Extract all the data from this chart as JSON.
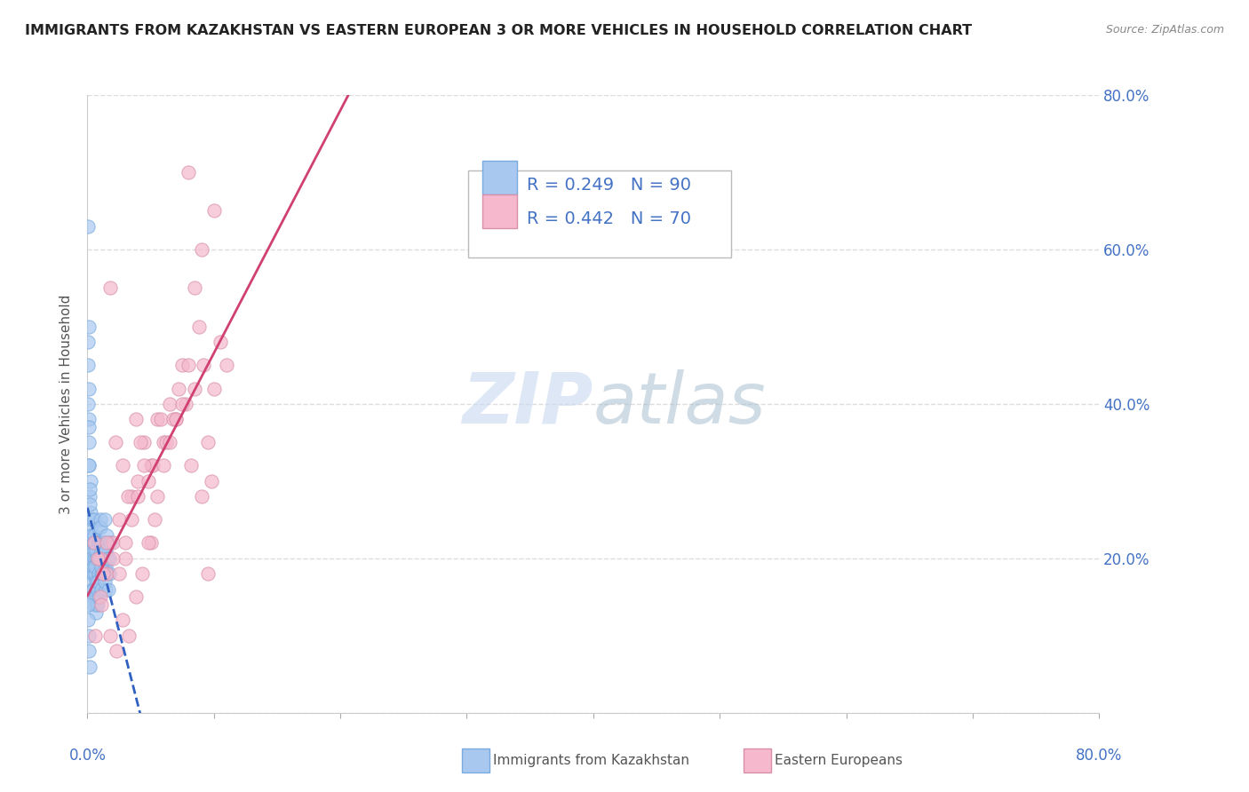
{
  "title": "IMMIGRANTS FROM KAZAKHSTAN VS EASTERN EUROPEAN 3 OR MORE VEHICLES IN HOUSEHOLD CORRELATION CHART",
  "source": "Source: ZipAtlas.com",
  "ylabel": "3 or more Vehicles in Household",
  "legend_label1": "Immigrants from Kazakhstan",
  "legend_label2": "Eastern Europeans",
  "R1": 0.249,
  "N1": 90,
  "R2": 0.442,
  "N2": 70,
  "color1": "#A8C8F0",
  "color2": "#F5B8CC",
  "trendline1_color": "#3060C0",
  "trendline2_color": "#D04070",
  "watermark_zip_color": "#C8D8F0",
  "watermark_atlas_color": "#A0BBCC",
  "bg_color": "#FFFFFF",
  "grid_color": "#DDDDDD",
  "tick_color": "#4472C4",
  "title_color": "#222222",
  "source_color": "#888888",
  "ylabel_color": "#555555",
  "xmin": 0.0,
  "xmax": 80.0,
  "ymin": 0.0,
  "ymax": 80.0,
  "blue_x": [
    0.05,
    0.08,
    0.1,
    0.12,
    0.05,
    0.07,
    0.09,
    0.06,
    0.11,
    0.08,
    0.15,
    0.18,
    0.2,
    0.22,
    0.25,
    0.14,
    0.16,
    0.19,
    0.21,
    0.24,
    0.3,
    0.35,
    0.32,
    0.38,
    0.28,
    0.33,
    0.36,
    0.31,
    0.37,
    0.29,
    0.45,
    0.5,
    0.48,
    0.52,
    0.44,
    0.47,
    0.51,
    0.46,
    0.53,
    0.43,
    0.6,
    0.65,
    0.7,
    0.62,
    0.68,
    0.63,
    0.67,
    0.64,
    0.66,
    0.69,
    0.8,
    0.85,
    0.9,
    0.82,
    0.88,
    0.83,
    0.87,
    0.84,
    0.86,
    0.89,
    1.0,
    1.1,
    1.2,
    1.05,
    1.08,
    1.15,
    1.18,
    1.02,
    1.12,
    1.06,
    1.3,
    1.4,
    1.5,
    1.35,
    1.45,
    1.32,
    1.48,
    1.38,
    1.42,
    1.52,
    1.6,
    1.7,
    1.8,
    1.65,
    1.75,
    0.04,
    0.06,
    0.09,
    0.13,
    0.17
  ],
  "blue_y": [
    63.0,
    42.0,
    38.0,
    35.0,
    45.0,
    40.0,
    37.0,
    48.0,
    32.0,
    50.0,
    28.0,
    25.0,
    22.0,
    30.0,
    26.0,
    32.0,
    27.0,
    23.0,
    29.0,
    24.0,
    20.0,
    22.0,
    18.0,
    25.0,
    19.0,
    21.0,
    17.0,
    23.0,
    16.0,
    20.0,
    22.0,
    20.0,
    18.0,
    25.0,
    15.0,
    19.0,
    21.0,
    16.0,
    23.0,
    14.0,
    18.0,
    20.0,
    16.0,
    22.0,
    14.0,
    19.0,
    15.0,
    21.0,
    13.0,
    17.0,
    20.0,
    22.0,
    18.0,
    16.0,
    24.0,
    14.0,
    20.0,
    17.0,
    22.0,
    15.0,
    22.0,
    18.0,
    20.0,
    25.0,
    16.0,
    22.0,
    18.0,
    24.0,
    19.0,
    21.0,
    20.0,
    22.0,
    18.0,
    25.0,
    16.0,
    22.0,
    19.0,
    17.0,
    21.0,
    23.0,
    20.0,
    18.0,
    22.0,
    16.0,
    20.0,
    14.0,
    12.0,
    10.0,
    8.0,
    6.0
  ],
  "pink_x": [
    0.5,
    1.0,
    1.5,
    2.0,
    2.5,
    3.0,
    3.5,
    4.0,
    4.5,
    5.0,
    5.5,
    6.0,
    6.5,
    7.0,
    7.5,
    8.0,
    8.5,
    9.0,
    9.5,
    10.0,
    0.8,
    1.2,
    1.8,
    2.2,
    2.8,
    3.2,
    3.8,
    4.2,
    4.8,
    5.2,
    5.8,
    6.2,
    6.8,
    7.2,
    7.8,
    8.2,
    8.8,
    9.2,
    9.8,
    10.5,
    1.0,
    1.5,
    2.0,
    2.5,
    3.0,
    3.5,
    4.0,
    4.5,
    5.0,
    5.5,
    6.0,
    6.5,
    7.0,
    7.5,
    8.0,
    8.5,
    9.0,
    9.5,
    10.0,
    11.0,
    0.6,
    1.1,
    1.8,
    2.3,
    2.8,
    3.3,
    3.8,
    4.3,
    4.8,
    5.3
  ],
  "pink_y": [
    22.0,
    20.0,
    18.0,
    22.0,
    25.0,
    20.0,
    28.0,
    30.0,
    35.0,
    32.0,
    38.0,
    35.0,
    40.0,
    38.0,
    45.0,
    70.0,
    55.0,
    60.0,
    18.0,
    42.0,
    20.0,
    18.0,
    55.0,
    35.0,
    32.0,
    28.0,
    38.0,
    35.0,
    30.0,
    32.0,
    38.0,
    35.0,
    38.0,
    42.0,
    40.0,
    32.0,
    50.0,
    45.0,
    30.0,
    48.0,
    15.0,
    22.0,
    20.0,
    18.0,
    22.0,
    25.0,
    28.0,
    32.0,
    22.0,
    28.0,
    32.0,
    35.0,
    38.0,
    40.0,
    45.0,
    42.0,
    28.0,
    35.0,
    65.0,
    45.0,
    10.0,
    14.0,
    10.0,
    8.0,
    12.0,
    10.0,
    15.0,
    18.0,
    22.0,
    25.0
  ]
}
